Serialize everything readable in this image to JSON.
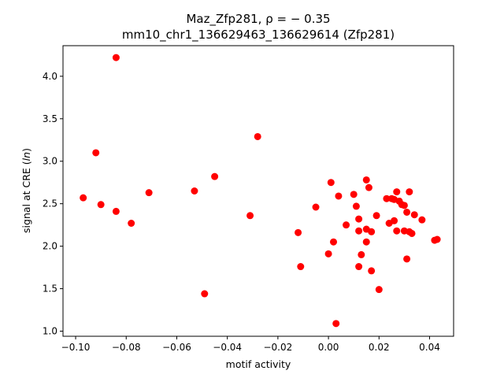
{
  "chart_data": {
    "type": "scatter",
    "title_line1": "Maz_Zfp281, ρ = − 0.35",
    "title_line2": "mm10_chr1_136629463_136629614 (Zfp281)",
    "xlabel": "motif activity",
    "ylabel": "signal at CRE (ln)",
    "xlim": [
      -0.105,
      0.0495
    ],
    "ylim": [
      0.94,
      4.36
    ],
    "xticks": [
      -0.1,
      -0.08,
      -0.06,
      -0.04,
      -0.02,
      0.0,
      0.02,
      0.04
    ],
    "xtick_labels": [
      "−0.10",
      "−0.08",
      "−0.06",
      "−0.04",
      "−0.02",
      "0.00",
      "0.02",
      "0.04"
    ],
    "yticks": [
      1.0,
      1.5,
      2.0,
      2.5,
      3.0,
      3.5,
      4.0
    ],
    "ytick_labels": [
      "1.0",
      "1.5",
      "2.0",
      "2.5",
      "3.0",
      "3.5",
      "4.0"
    ],
    "grid": false,
    "marker_color": "#ff0000",
    "points": [
      {
        "x": -0.084,
        "y": 4.22
      },
      {
        "x": -0.092,
        "y": 3.1
      },
      {
        "x": -0.097,
        "y": 2.57
      },
      {
        "x": -0.09,
        "y": 2.49
      },
      {
        "x": -0.084,
        "y": 2.41
      },
      {
        "x": -0.078,
        "y": 2.27
      },
      {
        "x": -0.071,
        "y": 2.63
      },
      {
        "x": -0.053,
        "y": 2.65
      },
      {
        "x": -0.045,
        "y": 2.82
      },
      {
        "x": -0.049,
        "y": 1.44
      },
      {
        "x": -0.028,
        "y": 3.29
      },
      {
        "x": -0.031,
        "y": 2.36
      },
      {
        "x": -0.012,
        "y": 2.16
      },
      {
        "x": -0.011,
        "y": 1.76
      },
      {
        "x": -0.005,
        "y": 2.46
      },
      {
        "x": 0.0,
        "y": 1.91
      },
      {
        "x": 0.001,
        "y": 2.75
      },
      {
        "x": 0.002,
        "y": 2.05
      },
      {
        "x": 0.003,
        "y": 1.09
      },
      {
        "x": 0.004,
        "y": 2.59
      },
      {
        "x": 0.007,
        "y": 2.25
      },
      {
        "x": 0.01,
        "y": 2.61
      },
      {
        "x": 0.011,
        "y": 2.47
      },
      {
        "x": 0.012,
        "y": 2.32
      },
      {
        "x": 0.012,
        "y": 2.18
      },
      {
        "x": 0.012,
        "y": 1.76
      },
      {
        "x": 0.013,
        "y": 1.9
      },
      {
        "x": 0.015,
        "y": 2.78
      },
      {
        "x": 0.015,
        "y": 2.2
      },
      {
        "x": 0.015,
        "y": 2.05
      },
      {
        "x": 0.016,
        "y": 2.69
      },
      {
        "x": 0.017,
        "y": 2.17
      },
      {
        "x": 0.017,
        "y": 1.71
      },
      {
        "x": 0.019,
        "y": 2.36
      },
      {
        "x": 0.02,
        "y": 1.49
      },
      {
        "x": 0.023,
        "y": 2.56
      },
      {
        "x": 0.024,
        "y": 2.27
      },
      {
        "x": 0.025,
        "y": 2.56
      },
      {
        "x": 0.026,
        "y": 2.55
      },
      {
        "x": 0.026,
        "y": 2.3
      },
      {
        "x": 0.027,
        "y": 2.64
      },
      {
        "x": 0.027,
        "y": 2.18
      },
      {
        "x": 0.028,
        "y": 2.53
      },
      {
        "x": 0.029,
        "y": 2.49
      },
      {
        "x": 0.03,
        "y": 2.48
      },
      {
        "x": 0.03,
        "y": 2.18
      },
      {
        "x": 0.031,
        "y": 2.4
      },
      {
        "x": 0.031,
        "y": 1.85
      },
      {
        "x": 0.032,
        "y": 2.64
      },
      {
        "x": 0.032,
        "y": 2.17
      },
      {
        "x": 0.033,
        "y": 2.15
      },
      {
        "x": 0.034,
        "y": 2.37
      },
      {
        "x": 0.037,
        "y": 2.31
      },
      {
        "x": 0.042,
        "y": 2.07
      },
      {
        "x": 0.043,
        "y": 2.08
      }
    ]
  }
}
